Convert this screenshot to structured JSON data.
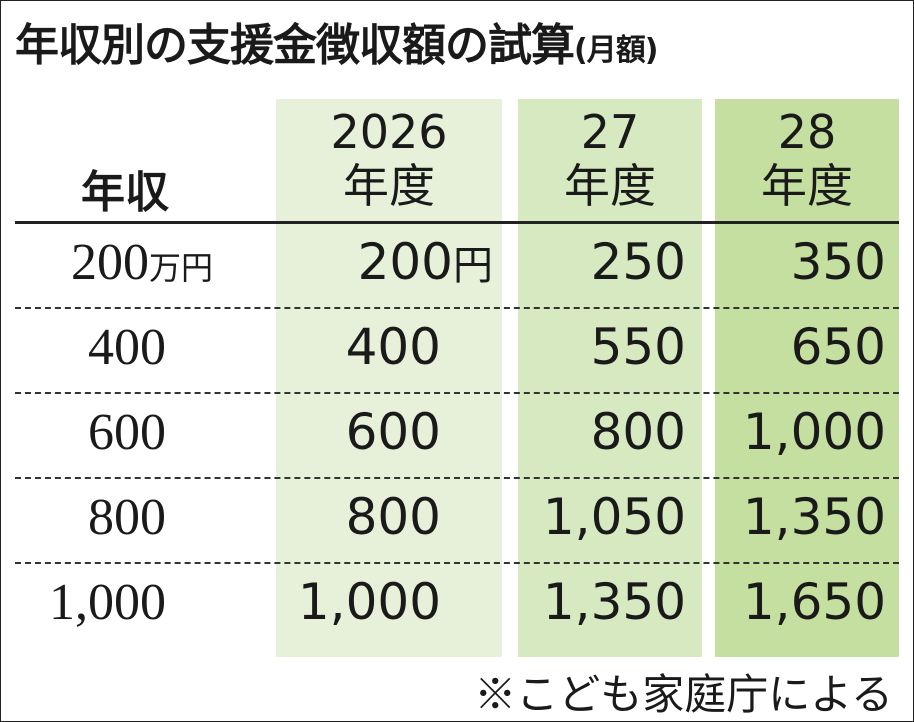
{
  "header": {
    "title": "年収別の支援金徴収額の試算",
    "subtitle": "(月額)"
  },
  "table": {
    "row_header": "年収",
    "columns": [
      {
        "year": "2026",
        "unit": "年度"
      },
      {
        "year": "27",
        "unit": "年度"
      },
      {
        "year": "28",
        "unit": "年度"
      }
    ],
    "units": {
      "income": "万円",
      "amount": "円"
    },
    "rows": [
      [
        "200",
        "200",
        "250",
        "350"
      ],
      [
        "400",
        "400",
        "550",
        "650"
      ],
      [
        "600",
        "600",
        "800",
        "1,000"
      ],
      [
        "800",
        "800",
        "1,050",
        "1,350"
      ],
      [
        "1,000",
        "1,000",
        "1,350",
        "1,650"
      ]
    ]
  },
  "note": "※こども家庭庁による"
}
